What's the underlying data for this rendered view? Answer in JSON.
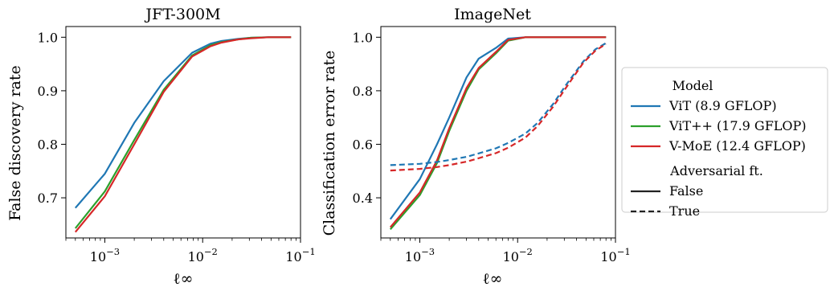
{
  "chart_data": [
    {
      "type": "line",
      "title": "JFT-300M",
      "xlabel": "ℓ∞",
      "ylabel": "False discovery rate",
      "xscale": "log",
      "xlim": [
        0.0004,
        0.1
      ],
      "ylim": [
        0.625,
        1.02
      ],
      "xticks": [
        {
          "value": 0.001,
          "base": "10",
          "exp": "−3"
        },
        {
          "value": 0.01,
          "base": "10",
          "exp": "−2"
        },
        {
          "value": 0.1,
          "base": "10",
          "exp": "−1"
        }
      ],
      "yticks": [
        {
          "value": 0.7,
          "label": "0.7"
        },
        {
          "value": 0.8,
          "label": "0.8"
        },
        {
          "value": 0.9,
          "label": "0.9"
        },
        {
          "value": 1.0,
          "label": "1.0"
        }
      ],
      "x": [
        0.0005,
        0.001,
        0.002,
        0.004,
        0.0078,
        0.012,
        0.0156,
        0.023,
        0.031,
        0.047,
        0.0625,
        0.08
      ],
      "series": [
        {
          "name": "ViT (8.9 GFLOP)",
          "color": "#1f77b4",
          "dash": "solid",
          "values": [
            0.681,
            0.745,
            0.84,
            0.918,
            0.971,
            0.988,
            0.993,
            0.997,
            0.999,
            1.0,
            1.0,
            1.0
          ]
        },
        {
          "name": "ViT++ (17.9 GFLOP)",
          "color": "#2ca02c",
          "dash": "solid",
          "values": [
            0.643,
            0.712,
            0.808,
            0.902,
            0.966,
            0.985,
            0.991,
            0.996,
            0.999,
            1.0,
            1.0,
            1.0
          ]
        },
        {
          "name": "V-MoE (12.4 GFLOP)",
          "color": "#d62728",
          "dash": "solid",
          "values": [
            0.636,
            0.703,
            0.8,
            0.898,
            0.964,
            0.983,
            0.99,
            0.996,
            0.998,
            1.0,
            1.0,
            1.0
          ]
        }
      ]
    },
    {
      "type": "line",
      "title": "ImageNet",
      "xlabel": "ℓ∞",
      "ylabel": "Classification error rate",
      "xscale": "log",
      "xlim": [
        0.0004,
        0.1
      ],
      "ylim": [
        0.25,
        1.04
      ],
      "xticks": [
        {
          "value": 0.001,
          "base": "10",
          "exp": "−3"
        },
        {
          "value": 0.01,
          "base": "10",
          "exp": "−2"
        },
        {
          "value": 0.1,
          "base": "10",
          "exp": "−1"
        }
      ],
      "yticks": [
        {
          "value": 0.4,
          "label": "0.4"
        },
        {
          "value": 0.6,
          "label": "0.6"
        },
        {
          "value": 0.8,
          "label": "0.8"
        },
        {
          "value": 1.0,
          "label": "1.0"
        }
      ],
      "x": [
        0.0005,
        0.001,
        0.0015,
        0.002,
        0.003,
        0.004,
        0.006,
        0.008,
        0.012,
        0.016,
        0.023,
        0.031,
        0.047,
        0.0625,
        0.08
      ],
      "series": [
        {
          "name": "ViT (8.9 GFLOP)",
          "color": "#1f77b4",
          "dash": "solid",
          "values": [
            0.32,
            0.47,
            0.6,
            0.7,
            0.85,
            0.92,
            0.96,
            0.995,
            1.0,
            1.0,
            1.0,
            1.0,
            1.0,
            1.0,
            1.0
          ]
        },
        {
          "name": "ViT++ (17.9 GFLOP)",
          "color": "#2ca02c",
          "dash": "solid",
          "values": [
            0.282,
            0.41,
            0.53,
            0.65,
            0.8,
            0.88,
            0.94,
            0.987,
            1.0,
            1.0,
            1.0,
            1.0,
            1.0,
            1.0,
            1.0
          ]
        },
        {
          "name": "V-MoE (12.4 GFLOP)",
          "color": "#d62728",
          "dash": "solid",
          "values": [
            0.29,
            0.42,
            0.54,
            0.66,
            0.81,
            0.885,
            0.945,
            0.99,
            1.0,
            1.0,
            1.0,
            1.0,
            1.0,
            1.0,
            1.0
          ]
        },
        {
          "name": "ViT (8.9 GFLOP)",
          "color": "#1f77b4",
          "dash": "dashed",
          "values": [
            0.522,
            0.527,
            0.534,
            0.541,
            0.553,
            0.566,
            0.585,
            0.605,
            0.64,
            0.68,
            0.75,
            0.82,
            0.91,
            0.955,
            0.978
          ]
        },
        {
          "name": "V-MoE (12.4 GFLOP)",
          "color": "#d62728",
          "dash": "dashed",
          "values": [
            0.502,
            0.508,
            0.515,
            0.522,
            0.535,
            0.548,
            0.567,
            0.587,
            0.625,
            0.668,
            0.74,
            0.81,
            0.905,
            0.95,
            0.975
          ]
        }
      ]
    }
  ],
  "legend": {
    "model_header": "Model",
    "models": [
      {
        "label": "ViT (8.9 GFLOP)",
        "color": "#1f77b4"
      },
      {
        "label": "ViT++ (17.9 GFLOP)",
        "color": "#2ca02c"
      },
      {
        "label": "V-MoE (12.4 GFLOP)",
        "color": "#d62728"
      }
    ],
    "adv_header": "Adversarial ft.",
    "adv": [
      {
        "label": "False",
        "dash": "solid",
        "color": "#222222"
      },
      {
        "label": "True",
        "dash": "dashed",
        "color": "#222222"
      }
    ],
    "placement": "right"
  }
}
